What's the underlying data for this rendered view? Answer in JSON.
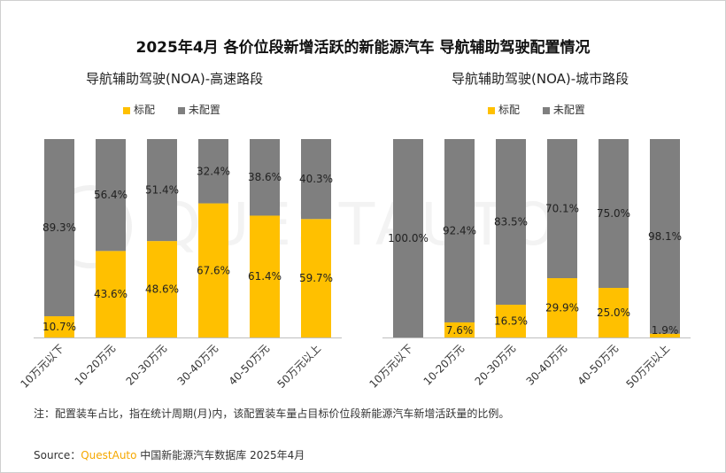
{
  "title": "2025年4月 各价位段新增活跃的新能源汽车 导航辅助驾驶配置情况",
  "legend": {
    "standard": "标配",
    "not_configured": "未配置"
  },
  "colors": {
    "standard": "#ffc000",
    "not_configured": "#7f7f7f"
  },
  "watermark": "QUESTAUTO",
  "note": "注：配置装车占比，指在统计周期(月)内，该配置装车量占目标价位段新能源汽车新增活跃量的比例。",
  "source": {
    "prefix": "Source：",
    "brand": "QuestAuto",
    "suffix": " 中国新能源汽车数据库 2025年4月"
  },
  "chart_data": [
    {
      "type": "bar",
      "stacked": true,
      "title": "导航辅助驾驶(NOA)-高速路段",
      "categories": [
        "10万元以下",
        "10-20万元",
        "20-30万元",
        "30-40万元",
        "40-50万元",
        "50万元以上"
      ],
      "series": [
        {
          "name": "标配",
          "values": [
            10.7,
            43.6,
            48.6,
            67.6,
            61.4,
            59.7
          ],
          "labels": [
            "10.7%",
            "43.6%",
            "48.6%",
            "67.6%",
            "61.4%",
            "59.7%"
          ]
        },
        {
          "name": "未配置",
          "values": [
            89.3,
            56.4,
            51.4,
            32.4,
            38.6,
            40.3
          ],
          "labels": [
            "89.3%",
            "56.4%",
            "51.4%",
            "32.4%",
            "38.6%",
            "40.3%"
          ]
        }
      ],
      "ylim": [
        0,
        100
      ],
      "legend_position": "top"
    },
    {
      "type": "bar",
      "stacked": true,
      "title": "导航辅助驾驶(NOA)-城市路段",
      "categories": [
        "10万元以下",
        "10-20万元",
        "20-30万元",
        "30-40万元",
        "40-50万元",
        "50万元以上"
      ],
      "series": [
        {
          "name": "标配",
          "values": [
            0,
            7.6,
            16.5,
            29.9,
            25.0,
            1.9
          ],
          "labels": [
            "",
            "7.6%",
            "16.5%",
            "29.9%",
            "25.0%",
            "1.9%"
          ]
        },
        {
          "name": "未配置",
          "values": [
            100.0,
            92.4,
            83.5,
            70.1,
            75.0,
            98.1
          ],
          "labels": [
            "100.0%",
            "92.4%",
            "83.5%",
            "70.1%",
            "75.0%",
            "98.1%"
          ]
        }
      ],
      "ylim": [
        0,
        100
      ],
      "legend_position": "top"
    }
  ]
}
